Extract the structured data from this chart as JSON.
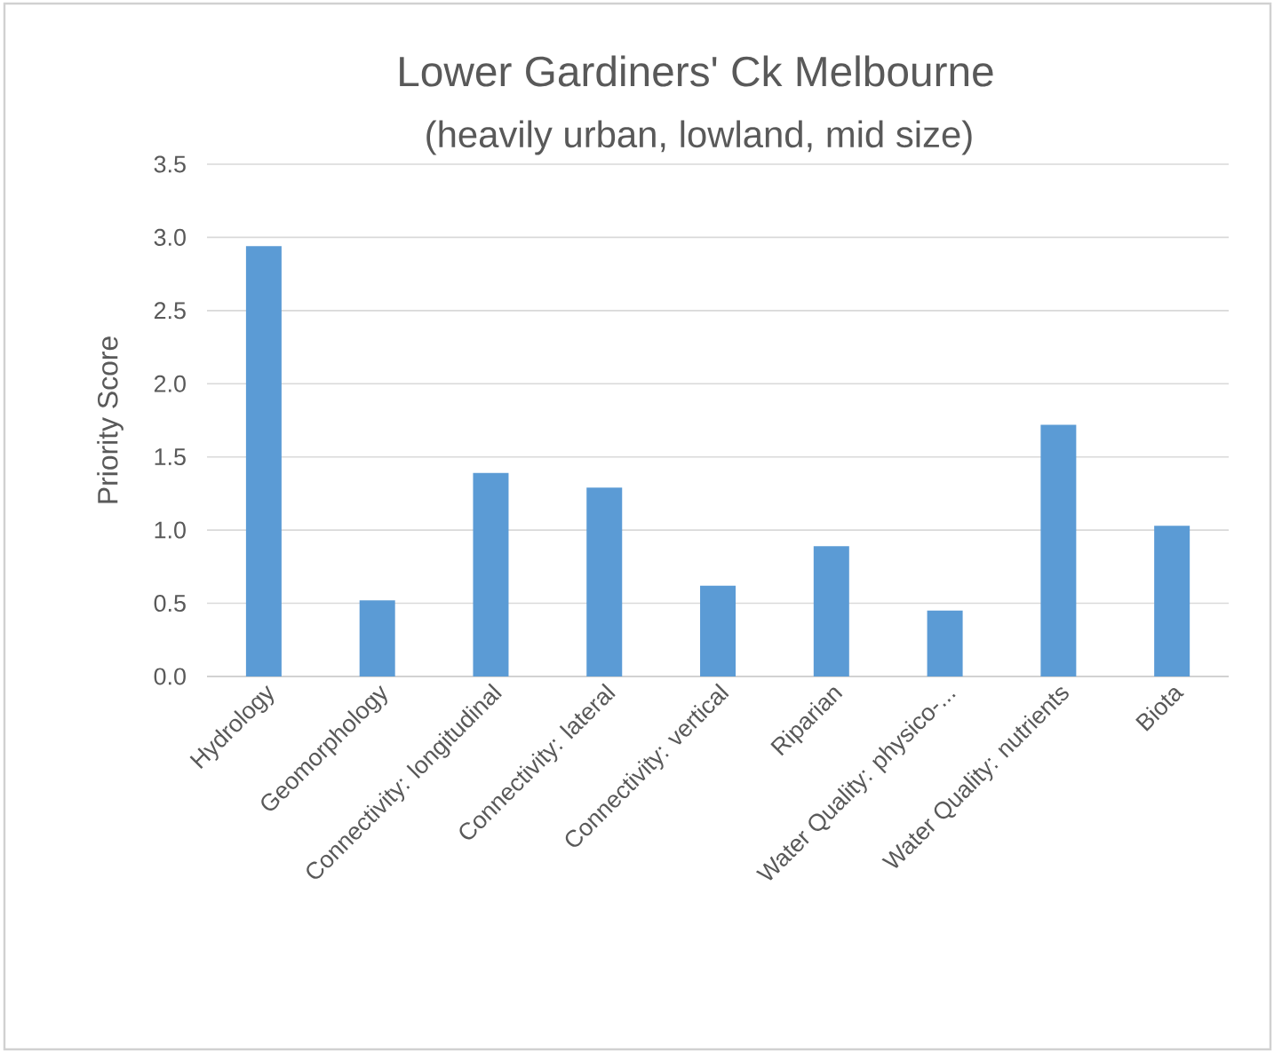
{
  "chart_data": {
    "type": "bar",
    "title": "Lower Gardiners' Ck Melbourne",
    "subtitle": "(heavily urban, lowland, mid size)",
    "ylabel": "Priority Score",
    "categories": [
      "Hydrology",
      "Geomorphology",
      "Connectivity: longitudinal",
      "Connectivity: lateral",
      "Connectivity: vertical",
      "Riparian",
      "Water Quality: physico-...",
      "Water Quality: nutrients",
      "Biota"
    ],
    "values": [
      2.94,
      0.52,
      1.39,
      1.29,
      0.62,
      0.89,
      0.45,
      1.72,
      1.03
    ],
    "color": "#5b9bd5",
    "ylim": [
      0,
      3.5
    ],
    "yticks": [
      {
        "value": 0,
        "label": "0.0"
      },
      0.5,
      {
        "value": 1,
        "label": "1.0"
      },
      1.5,
      {
        "value": 2,
        "label": "2.0"
      },
      2.5,
      {
        "value": 3,
        "label": "3.0"
      },
      3.5
    ],
    "grid": "y"
  }
}
